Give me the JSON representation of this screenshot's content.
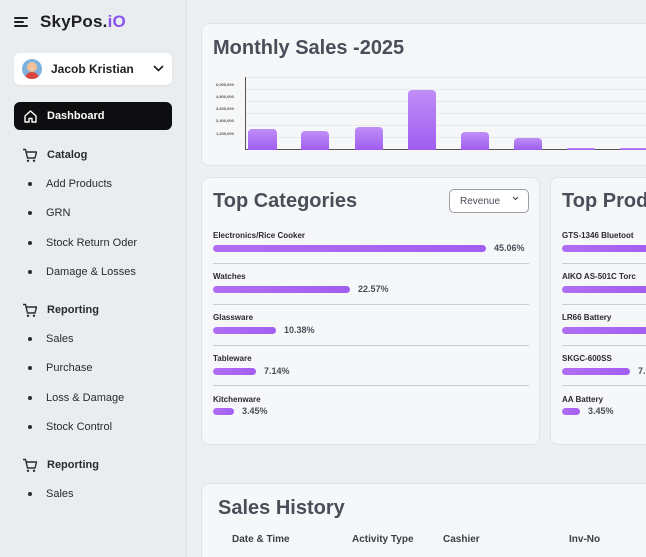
{
  "brand": {
    "name": "SkyPos.",
    "accent": "iO"
  },
  "user": {
    "name": "Jacob Kristian"
  },
  "nav": {
    "dashboard": "Dashboard",
    "catalog": "Catalog",
    "catalog_items": [
      "Add Products",
      "GRN",
      "Stock Return Oder",
      "Damage & Losses"
    ],
    "reporting": "Reporting",
    "reporting_items": [
      "Sales",
      "Purchase",
      "Loss & Damage",
      "Stock Control"
    ],
    "reporting2": "Reporting",
    "reporting2_items": [
      "Sales"
    ]
  },
  "monthly": {
    "title": "Monthly Sales -2025",
    "y_ticks": [
      "6,000,000",
      "4,800,000",
      "3,600,000",
      "2,400,000",
      "1,200,000"
    ]
  },
  "chart_data": {
    "type": "bar",
    "title": "Monthly Sales -2025",
    "values": [
      1750000,
      1530000,
      1900000,
      4900000,
      1500000,
      950000,
      180000,
      160000
    ],
    "ylim": [
      0,
      6000000
    ],
    "y_ticks": [
      1200000,
      2400000,
      3600000,
      4800000,
      6000000
    ],
    "colors": {
      "bar": "#a865f2"
    }
  },
  "top_categories": {
    "title": "Top Categories",
    "filter": "Revenue",
    "items": [
      {
        "label": "Electronics/Rice Cooker",
        "pct_text": "45.06%",
        "value": 45.06
      },
      {
        "label": "Watches",
        "pct_text": "22.57%",
        "value": 22.57
      },
      {
        "label": "Glassware",
        "pct_text": "10.38%",
        "value": 10.38
      },
      {
        "label": "Tableware",
        "pct_text": "7.14%",
        "value": 7.14
      },
      {
        "label": "Kitchenware",
        "pct_text": "3.45%",
        "value": 3.45
      }
    ]
  },
  "top_products": {
    "title": "Top Produ",
    "items": [
      {
        "label": "GTS-1346 Bluetoot",
        "pct_text": ""
      },
      {
        "label": "AIKO AS-501C Torc",
        "pct_text": ""
      },
      {
        "label": "LR66 Battery",
        "pct_text": ""
      },
      {
        "label": "SKGC-600SS",
        "pct_text": "7."
      },
      {
        "label": "AA Battery",
        "pct_text": "3.45%"
      }
    ]
  },
  "sales_history": {
    "title": "Sales History",
    "columns": [
      "Date & Time",
      "Activity Type",
      "Cashier",
      "Inv-No"
    ]
  },
  "colors": {
    "accent": "#8b52f0",
    "bar": "#a865f2",
    "active_nav": "#0e0e10"
  }
}
